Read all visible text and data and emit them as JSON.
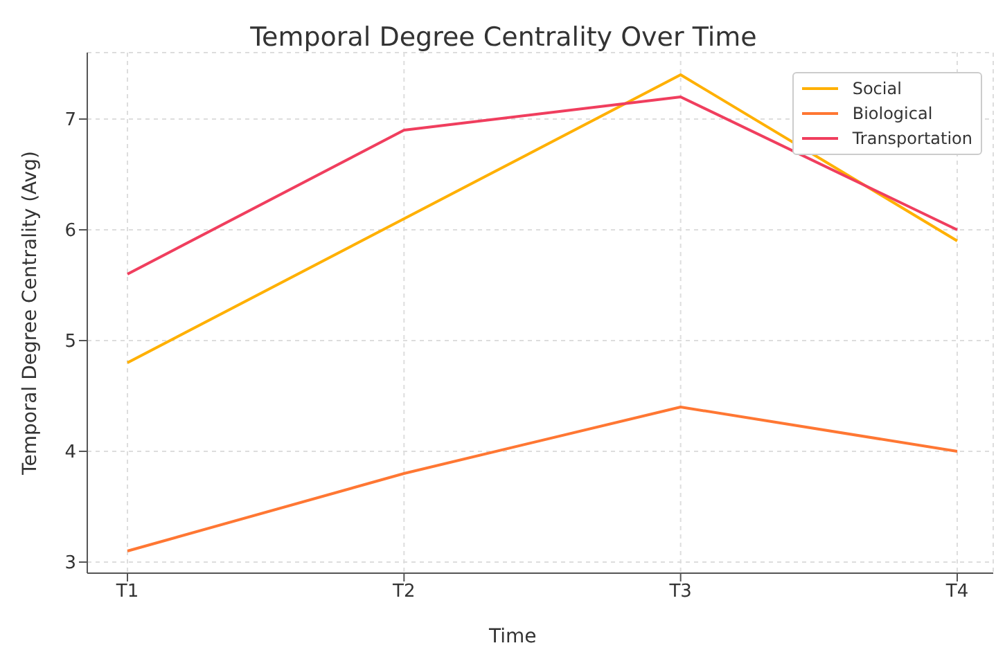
{
  "chart_data": {
    "type": "line",
    "title": "Temporal Degree Centrality Over Time",
    "xlabel": "Time",
    "ylabel": "Temporal Degree Centrality (Avg)",
    "categories": [
      "T1",
      "T2",
      "T3",
      "T4"
    ],
    "series": [
      {
        "name": "Social",
        "color": "#ffb000",
        "values": [
          4.8,
          6.1,
          7.4,
          5.9
        ]
      },
      {
        "name": "Biological",
        "color": "#ff7733",
        "values": [
          3.1,
          3.8,
          4.4,
          4.0
        ]
      },
      {
        "name": "Transportation",
        "color": "#f03e5e",
        "values": [
          5.6,
          6.9,
          7.2,
          6.0
        ]
      }
    ],
    "ylim": [
      2.9,
      7.6
    ],
    "yticks": [
      3,
      4,
      5,
      6,
      7
    ],
    "grid": true,
    "legend": "top right",
    "marker": "none",
    "line_style": "solid"
  }
}
